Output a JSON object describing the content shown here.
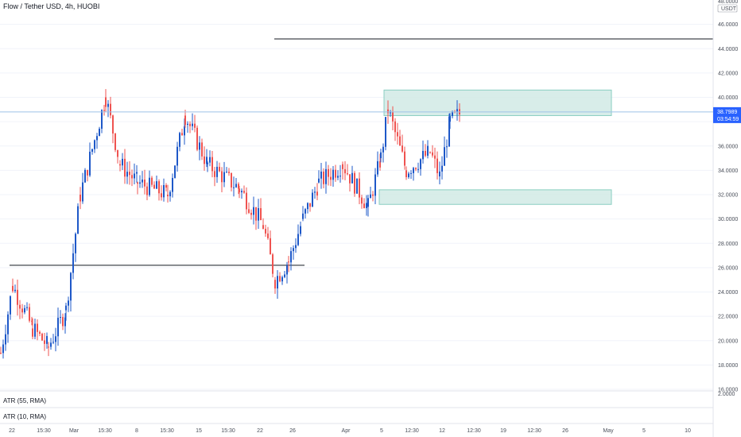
{
  "header": {
    "title": "Flow / Tether USD, 4h, HUOBI"
  },
  "price_axis": {
    "currency_top": "48.0000",
    "currency": "USDT",
    "last_price": "38.7989",
    "countdown": "03:54:59",
    "ticks": [
      "46.0000",
      "44.0000",
      "42.0000",
      "40.0000",
      "36.0000",
      "34.0000",
      "32.0000",
      "30.0000",
      "28.0000",
      "26.0000",
      "24.0000",
      "22.0000",
      "20.0000",
      "18.0000",
      "16.0000"
    ]
  },
  "indicators": {
    "atr1": {
      "label": "ATR (55, RMA)",
      "axis_value": "2.0000"
    },
    "atr2": {
      "label": "ATR (10, RMA)"
    }
  },
  "colors": {
    "up": "#26a69a",
    "down": "#ef5350",
    "volume_up": "#1e58c8",
    "zone_fill": "#d4ece7",
    "zone_border": "#7ec9bb",
    "last_price": "#2962ff",
    "level_line": "#131722"
  },
  "chart_data": {
    "type": "candlestick",
    "title": "Flow / Tether USD, 4h, HUOBI",
    "exchange": "HUOBI",
    "interval": "4h",
    "ylim": [
      16,
      48
    ],
    "x_tick_labels": [
      "22",
      "15:30",
      "Mar",
      "15:30",
      "8",
      "15:30",
      "15",
      "15:30",
      "22",
      "26",
      "Apr",
      "5",
      "12:30",
      "12",
      "12:30",
      "19",
      "12:30",
      "26",
      "May",
      "5",
      "10"
    ],
    "last_price": 38.7989,
    "horizontal_levels": [
      44.8,
      26.2
    ],
    "zones": [
      {
        "from": 38.5,
        "to": 40.6
      },
      {
        "from": 31.2,
        "to": 32.4
      }
    ],
    "price_path": [
      {
        "x": "Feb 18",
        "close": 19.0
      },
      {
        "x": "Feb 20",
        "close": 24.5
      },
      {
        "x": "Feb 22",
        "close": 21.0
      },
      {
        "x": "Feb 26",
        "close": 19.5
      },
      {
        "x": "Feb 28",
        "close": 22.5
      },
      {
        "x": "Mar 2",
        "close": 32.0
      },
      {
        "x": "Mar 4",
        "close": 40.0
      },
      {
        "x": "Mar 6",
        "close": 34.5
      },
      {
        "x": "Mar 8",
        "close": 33.0
      },
      {
        "x": "Mar 10",
        "close": 32.0
      },
      {
        "x": "Mar 12",
        "close": 38.5
      },
      {
        "x": "Mar 14",
        "close": 34.5
      },
      {
        "x": "Mar 18",
        "close": 32.5
      },
      {
        "x": "Mar 22",
        "close": 29.5
      },
      {
        "x": "Mar 24",
        "close": 25.0
      },
      {
        "x": "Mar 26",
        "close": 26.5
      },
      {
        "x": "Mar 28",
        "close": 30.0
      },
      {
        "x": "Mar 30",
        "close": 33.0
      },
      {
        "x": "Apr 1",
        "close": 34.5
      },
      {
        "x": "Apr 3",
        "close": 31.0
      },
      {
        "x": "Apr 5",
        "close": 35.0
      },
      {
        "x": "Apr 6",
        "close": 39.0
      },
      {
        "x": "Apr 8",
        "close": 34.0
      },
      {
        "x": "Apr 10",
        "close": 35.5
      },
      {
        "x": "Apr 12",
        "close": 33.5
      },
      {
        "x": "Apr 13",
        "close": 38.0
      },
      {
        "x": "Apr 15",
        "close": 38.8
      }
    ]
  }
}
